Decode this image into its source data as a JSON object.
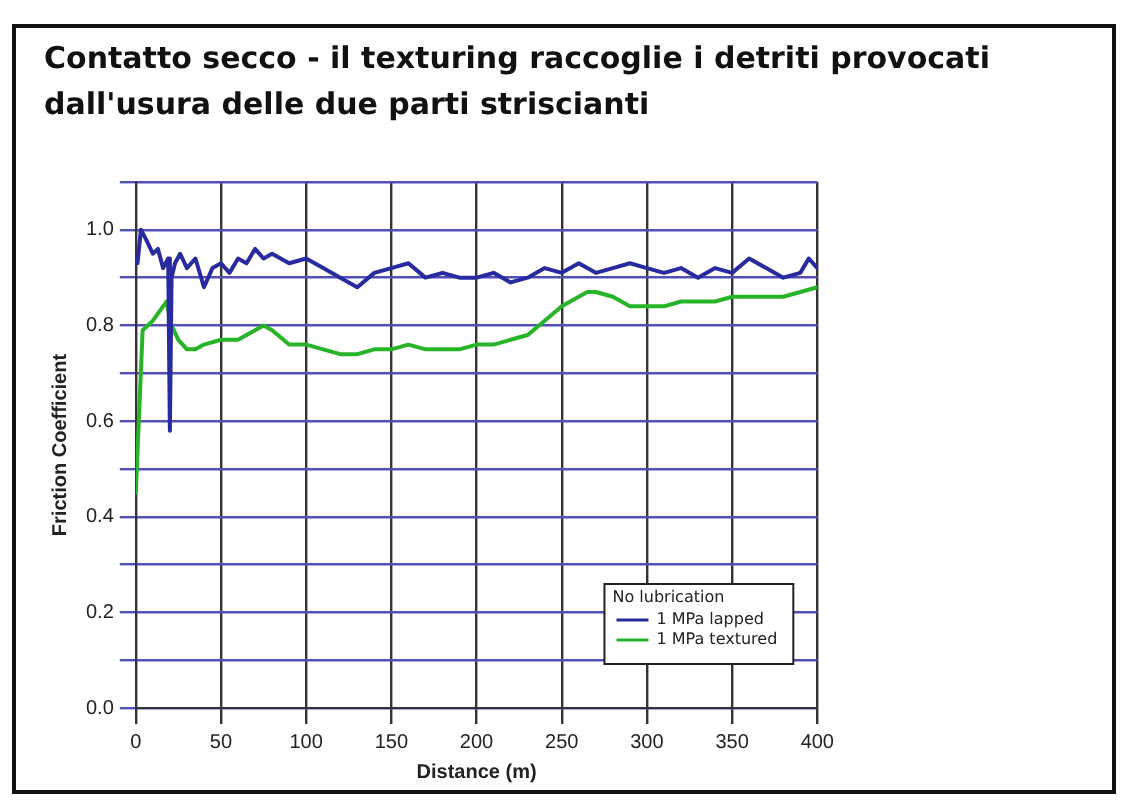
{
  "chart_data": {
    "type": "line",
    "title": "Contatto secco - il texturing raccoglie i detriti provocati dall'usura delle due parti striscianti",
    "xlabel": "Distance (m)",
    "ylabel": "Friction Coefficient",
    "legend_title": "No lubrication",
    "legend": "bottom right",
    "grid": true,
    "marker": "none",
    "line_style": "solid",
    "xlim": [
      0,
      400
    ],
    "xticks": [
      0,
      50,
      100,
      150,
      200,
      250,
      300,
      350,
      400
    ],
    "ylim": [
      0,
      1.1
    ],
    "yticks": [
      {
        "value": 0,
        "label": "0.0"
      },
      {
        "value": 0.1,
        "label": null
      },
      0.2,
      {
        "value": 0.3,
        "label": null
      },
      0.4,
      {
        "value": 0.5,
        "label": null
      },
      0.6,
      {
        "value": 0.7,
        "label": null
      },
      0.8,
      {
        "value": 0.9,
        "label": null
      },
      {
        "value": 1,
        "label": "1.0"
      },
      {
        "value": 1.1,
        "label": null
      }
    ],
    "series": [
      {
        "name": "1 MPa lapped",
        "color": "#2a2aa0",
        "x": [
          1,
          3,
          6,
          10,
          13,
          16,
          19,
          20,
          21,
          23,
          26,
          30,
          35,
          40,
          45,
          50,
          55,
          60,
          65,
          70,
          75,
          80,
          90,
          100,
          110,
          120,
          130,
          140,
          150,
          160,
          170,
          180,
          190,
          200,
          210,
          220,
          230,
          240,
          250,
          260,
          270,
          280,
          290,
          300,
          310,
          320,
          330,
          340,
          350,
          360,
          370,
          380,
          390,
          395,
          400
        ],
        "values": [
          0.93,
          1.0,
          0.98,
          0.95,
          0.96,
          0.92,
          0.94,
          0.58,
          0.9,
          0.93,
          0.95,
          0.92,
          0.94,
          0.88,
          0.92,
          0.93,
          0.91,
          0.94,
          0.93,
          0.96,
          0.94,
          0.95,
          0.93,
          0.94,
          0.92,
          0.9,
          0.88,
          0.91,
          0.92,
          0.93,
          0.9,
          0.91,
          0.9,
          0.9,
          0.91,
          0.89,
          0.9,
          0.92,
          0.91,
          0.93,
          0.91,
          0.92,
          0.93,
          0.92,
          0.91,
          0.92,
          0.9,
          0.92,
          0.91,
          0.94,
          0.92,
          0.9,
          0.91,
          0.94,
          0.92
        ]
      },
      {
        "name": "1 MPa textured",
        "color": "#28b428",
        "x": [
          0,
          2,
          4,
          7,
          10,
          14,
          18,
          21,
          25,
          30,
          35,
          40,
          50,
          60,
          70,
          75,
          80,
          90,
          100,
          110,
          120,
          130,
          140,
          150,
          160,
          170,
          180,
          190,
          200,
          210,
          220,
          230,
          240,
          250,
          260,
          265,
          270,
          280,
          290,
          300,
          310,
          320,
          330,
          340,
          350,
          360,
          370,
          380,
          390,
          400
        ],
        "values": [
          0.45,
          0.62,
          0.79,
          0.8,
          0.81,
          0.83,
          0.85,
          0.8,
          0.77,
          0.75,
          0.75,
          0.76,
          0.77,
          0.77,
          0.79,
          0.8,
          0.79,
          0.76,
          0.76,
          0.75,
          0.74,
          0.74,
          0.75,
          0.75,
          0.76,
          0.75,
          0.75,
          0.75,
          0.76,
          0.76,
          0.77,
          0.78,
          0.81,
          0.84,
          0.86,
          0.87,
          0.87,
          0.86,
          0.84,
          0.84,
          0.84,
          0.85,
          0.85,
          0.85,
          0.86,
          0.86,
          0.86,
          0.86,
          0.87,
          0.88
        ]
      }
    ]
  }
}
